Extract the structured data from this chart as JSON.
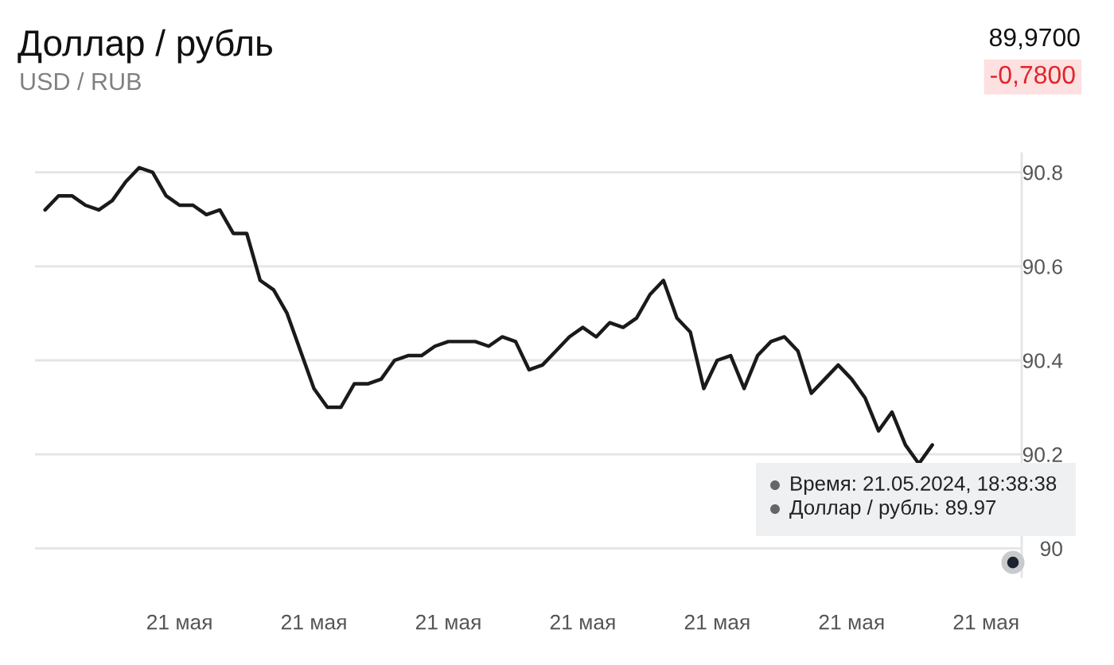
{
  "chart_data": {
    "type": "line",
    "title": "Доллар / рубль",
    "subtitle": "USD / RUB",
    "categories": [
      null,
      null,
      null,
      null,
      null,
      null,
      null,
      null,
      null,
      null,
      "21 мая",
      null,
      null,
      null,
      null,
      null,
      null,
      null,
      null,
      null,
      "21 мая",
      null,
      null,
      null,
      null,
      null,
      null,
      null,
      null,
      null,
      "21 мая",
      null,
      null,
      null,
      null,
      null,
      null,
      null,
      null,
      null,
      "21 мая",
      null,
      null,
      null,
      null,
      null,
      null,
      null,
      null,
      null,
      "21 мая",
      null,
      null,
      null,
      null,
      null,
      null,
      null,
      null,
      null,
      "21 мая",
      null,
      null,
      null,
      null,
      null,
      null,
      null,
      null,
      null,
      "21 мая",
      null,
      null
    ],
    "series": [
      {
        "color": "#1a1a1a",
        "values": [
          90.72,
          90.75,
          90.75,
          90.73,
          90.72,
          90.74,
          90.78,
          90.81,
          90.8,
          90.75,
          90.73,
          90.73,
          90.71,
          90.72,
          90.67,
          90.67,
          90.57,
          90.55,
          90.5,
          90.42,
          90.34,
          90.3,
          90.3,
          90.35,
          90.35,
          90.36,
          90.4,
          90.41,
          90.41,
          90.43,
          90.44,
          90.44,
          90.44,
          90.43,
          90.45,
          90.44,
          90.38,
          90.39,
          90.42,
          90.45,
          90.47,
          90.45,
          90.48,
          90.47,
          90.49,
          90.54,
          90.57,
          90.49,
          90.46,
          90.34,
          90.4,
          90.41,
          90.34,
          90.41,
          90.44,
          90.45,
          90.42,
          90.33,
          90.36,
          90.39,
          90.36,
          90.32,
          90.25,
          90.29,
          90.22,
          90.18,
          90.22,
          null,
          null,
          null,
          null,
          null,
          null
        ]
      },
      {
        "type": "scatter",
        "color": "#1b2230",
        "marker": "circle",
        "values": [
          null,
          null,
          null,
          null,
          null,
          null,
          null,
          null,
          null,
          null,
          null,
          null,
          null,
          null,
          null,
          null,
          null,
          null,
          null,
          null,
          null,
          null,
          null,
          null,
          null,
          null,
          null,
          null,
          null,
          null,
          null,
          null,
          null,
          null,
          null,
          null,
          null,
          null,
          null,
          null,
          null,
          null,
          null,
          null,
          null,
          null,
          null,
          null,
          null,
          null,
          null,
          null,
          null,
          null,
          null,
          null,
          null,
          null,
          null,
          null,
          null,
          null,
          null,
          null,
          null,
          null,
          null,
          null,
          null,
          null,
          null,
          null,
          89.97
        ]
      }
    ],
    "ylim": [
      89.94,
      90.84
    ],
    "yticks": [
      90,
      90.2,
      90.4,
      90.6,
      90.8
    ],
    "grid": "y",
    "annotations": [
      "89,9700",
      "-0,7800",
      "Время: 21.05.2024, 18:38:38",
      "Доллар / рубль: 89.97"
    ]
  }
}
